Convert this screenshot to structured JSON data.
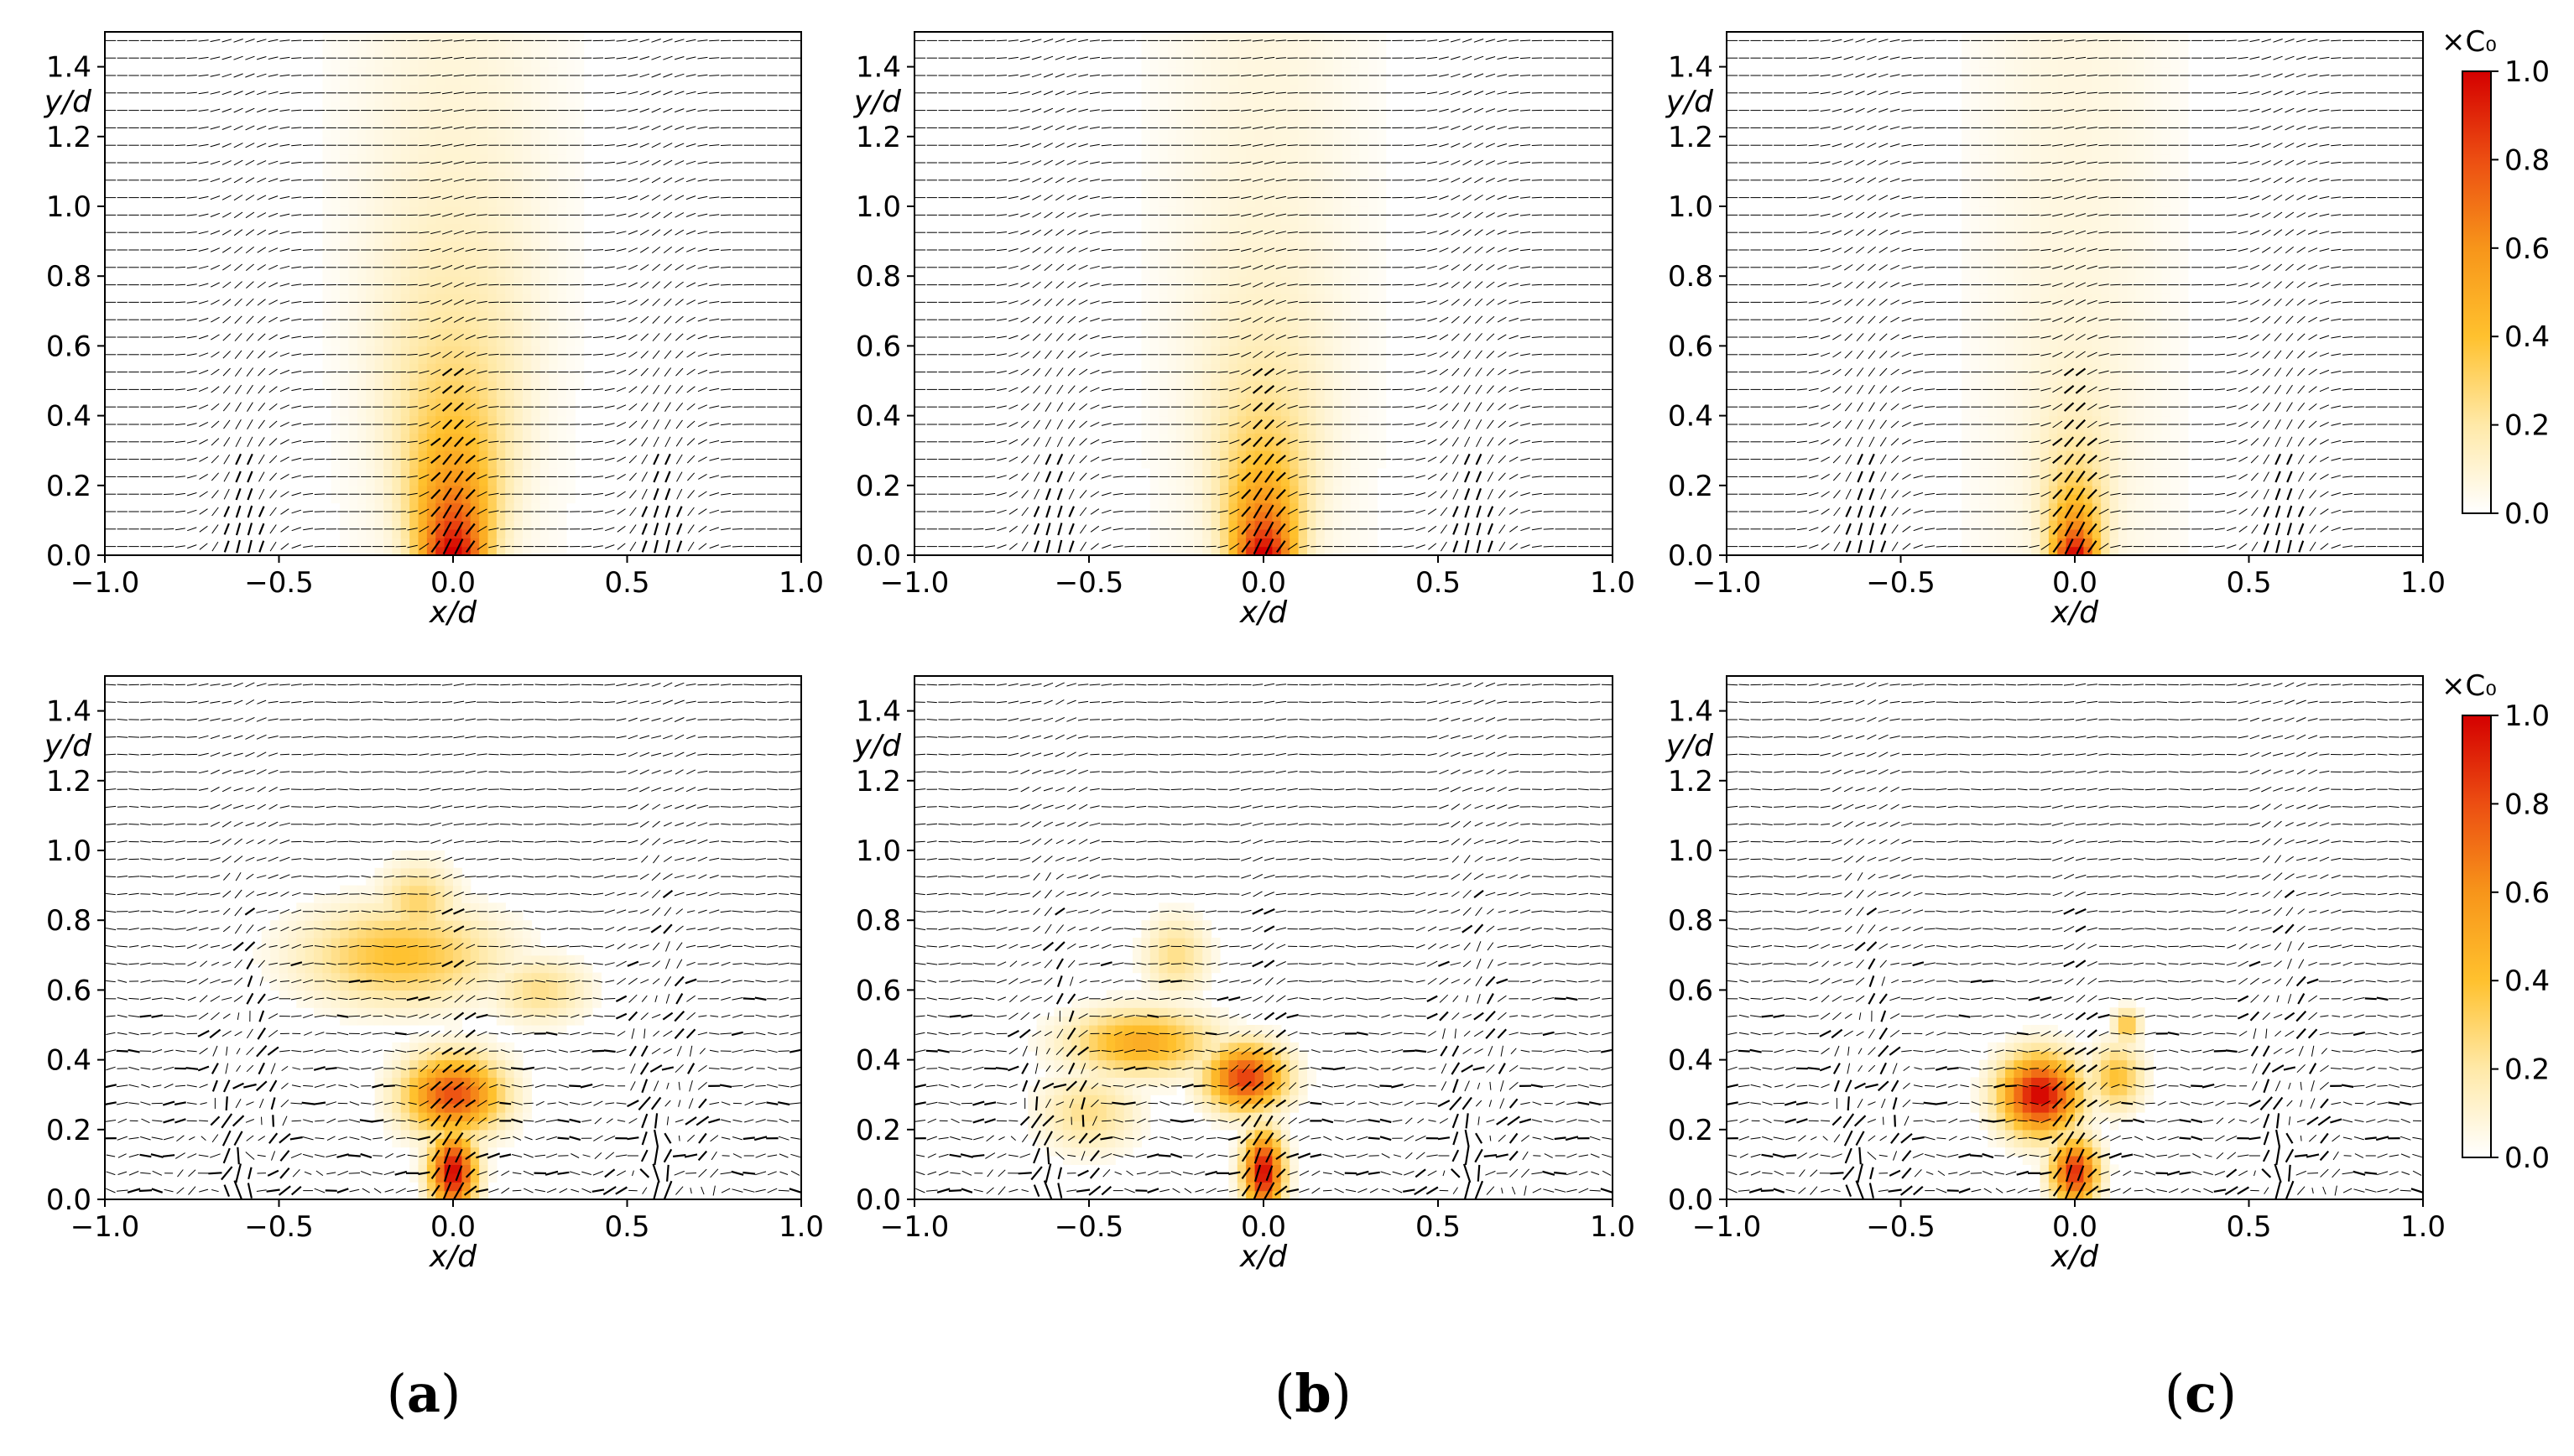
{
  "colorbar": {
    "label": "×C₀",
    "ticks": [
      "1.0",
      "0.8",
      "0.6",
      "0.4",
      "0.2",
      "0.0"
    ],
    "colors": [
      "#ffffff",
      "#ffe9a8",
      "#ffc12e",
      "#f7951a",
      "#ec4e12",
      "#d40000"
    ]
  },
  "captions": [
    {
      "open": "(",
      "letter": "a",
      "close": ")"
    },
    {
      "open": "(",
      "letter": "b",
      "close": ")"
    },
    {
      "open": "(",
      "letter": "c",
      "close": ")"
    }
  ],
  "chart_data": [
    {
      "id": "top-a",
      "type": "heatmap",
      "title": "",
      "xlabel": "x/d",
      "ylabel": "y/d",
      "xlim": [
        -1.0,
        1.0
      ],
      "ylim": [
        0.0,
        1.5
      ],
      "xticks": [
        "−1.0",
        "−0.5",
        "0.0",
        "0.5",
        "1.0"
      ],
      "yticks": [
        "0.0",
        "0.2",
        "0.4",
        "0.6",
        "0.8",
        "1.0",
        "1.2",
        "1.4"
      ],
      "field": "mean",
      "plume": {
        "x_center": 0.0,
        "height": 0.75,
        "width": 0.33,
        "peak": 1.0
      }
    },
    {
      "id": "top-b",
      "type": "heatmap",
      "title": "",
      "xlabel": "x/d",
      "ylabel": "y/d",
      "xlim": [
        -1.0,
        1.0
      ],
      "ylim": [
        0.0,
        1.5
      ],
      "xticks": [
        "−1.0",
        "−0.5",
        "0.0",
        "0.5",
        "1.0"
      ],
      "yticks": [
        "0.0",
        "0.2",
        "0.4",
        "0.6",
        "0.8",
        "1.0",
        "1.2",
        "1.4"
      ],
      "field": "mean",
      "plume": {
        "x_center": 0.0,
        "height": 0.55,
        "width": 0.3,
        "peak": 1.0
      }
    },
    {
      "id": "top-c",
      "type": "heatmap",
      "title": "",
      "xlabel": "x/d",
      "ylabel": "y/d",
      "xlim": [
        -1.0,
        1.0
      ],
      "ylim": [
        0.0,
        1.5
      ],
      "xticks": [
        "−1.0",
        "−0.5",
        "0.0",
        "0.5",
        "1.0"
      ],
      "yticks": [
        "0.0",
        "0.2",
        "0.4",
        "0.6",
        "0.8",
        "1.0",
        "1.2",
        "1.4"
      ],
      "field": "mean",
      "plume": {
        "x_center": 0.0,
        "height": 0.35,
        "width": 0.22,
        "peak": 1.0
      }
    },
    {
      "id": "bottom-a",
      "type": "heatmap",
      "title": "",
      "xlabel": "x/d",
      "ylabel": "y/d",
      "xlim": [
        -1.0,
        1.0
      ],
      "ylim": [
        0.0,
        1.5
      ],
      "xticks": [
        "−1.0",
        "−0.5",
        "0.0",
        "0.5",
        "1.0"
      ],
      "yticks": [
        "0.0",
        "0.2",
        "0.4",
        "0.6",
        "0.8",
        "1.0",
        "1.2",
        "1.4"
      ],
      "field": "instantaneous",
      "blobs": [
        {
          "x": 0.0,
          "y": 0.08,
          "rx": 0.07,
          "ry": 0.12,
          "c": 1.0
        },
        {
          "x": 0.0,
          "y": 0.3,
          "rx": 0.15,
          "ry": 0.12,
          "c": 0.8
        },
        {
          "x": -0.15,
          "y": 0.7,
          "rx": 0.3,
          "ry": 0.15,
          "c": 0.4
        },
        {
          "x": -0.1,
          "y": 0.85,
          "rx": 0.12,
          "ry": 0.12,
          "c": 0.3
        },
        {
          "x": 0.25,
          "y": 0.6,
          "rx": 0.15,
          "ry": 0.1,
          "c": 0.25
        }
      ]
    },
    {
      "id": "bottom-b",
      "type": "heatmap",
      "title": "",
      "xlabel": "x/d",
      "ylabel": "y/d",
      "xlim": [
        -1.0,
        1.0
      ],
      "ylim": [
        0.0,
        1.5
      ],
      "xticks": [
        "−1.0",
        "−0.5",
        "0.0",
        "0.5",
        "1.0"
      ],
      "yticks": [
        "0.0",
        "0.2",
        "0.4",
        "0.6",
        "0.8",
        "1.0",
        "1.2",
        "1.4"
      ],
      "field": "instantaneous",
      "blobs": [
        {
          "x": 0.0,
          "y": 0.08,
          "rx": 0.06,
          "ry": 0.12,
          "c": 1.0
        },
        {
          "x": -0.05,
          "y": 0.35,
          "rx": 0.12,
          "ry": 0.1,
          "c": 0.85
        },
        {
          "x": -0.35,
          "y": 0.45,
          "rx": 0.22,
          "ry": 0.1,
          "c": 0.5
        },
        {
          "x": -0.5,
          "y": 0.25,
          "rx": 0.15,
          "ry": 0.12,
          "c": 0.25
        },
        {
          "x": -0.25,
          "y": 0.7,
          "rx": 0.1,
          "ry": 0.12,
          "c": 0.25
        }
      ]
    },
    {
      "id": "bottom-c",
      "type": "heatmap",
      "title": "",
      "xlabel": "x/d",
      "ylabel": "y/d",
      "xlim": [
        -1.0,
        1.0
      ],
      "ylim": [
        0.0,
        1.5
      ],
      "xticks": [
        "−1.0",
        "−0.5",
        "0.0",
        "0.5",
        "1.0"
      ],
      "yticks": [
        "0.0",
        "0.2",
        "0.4",
        "0.6",
        "0.8",
        "1.0",
        "1.2",
        "1.4"
      ],
      "field": "instantaneous",
      "blobs": [
        {
          "x": 0.0,
          "y": 0.08,
          "rx": 0.07,
          "ry": 0.1,
          "c": 0.9
        },
        {
          "x": -0.1,
          "y": 0.3,
          "rx": 0.12,
          "ry": 0.12,
          "c": 1.0
        },
        {
          "x": 0.12,
          "y": 0.35,
          "rx": 0.08,
          "ry": 0.1,
          "c": 0.4
        },
        {
          "x": 0.15,
          "y": 0.5,
          "rx": 0.04,
          "ry": 0.05,
          "c": 0.4
        }
      ]
    }
  ]
}
